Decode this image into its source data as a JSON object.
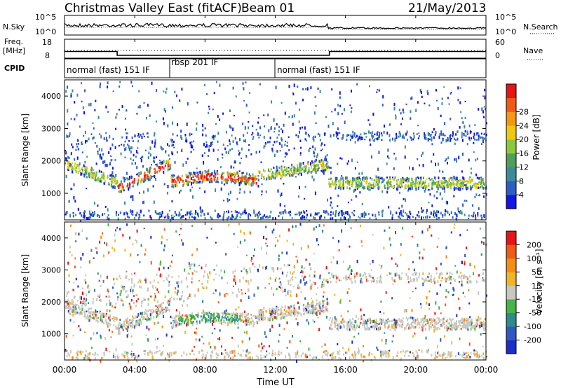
{
  "header": {
    "station": "Christmas Valley East (fitACF)",
    "beam": "Beam 01",
    "date": "21/May/2013"
  },
  "colors": {
    "power_scale": [
      "#1414e6",
      "#2a5fc8",
      "#3f8a9a",
      "#4da05a",
      "#8cc83c",
      "#f0c814",
      "#f59614",
      "#f05a14",
      "#e61414"
    ],
    "velocity_scale": [
      "#1a2fc8",
      "#3158c2",
      "#2f8a8a",
      "#46b446",
      "#c8c8c0",
      "#f0b428",
      "#f58c14",
      "#f05a14",
      "#e61414"
    ]
  },
  "chart_data": [
    {
      "type": "line",
      "panel": "noise",
      "series": [
        {
          "name": "N.Sky",
          "style": "solid"
        },
        {
          "name": "N.Search",
          "style": "dotted"
        }
      ],
      "left_label": "N.Sky",
      "right_label": "N.Search",
      "left_ticks": [
        "10^5",
        "10^0"
      ],
      "right_ticks": [
        "10^5",
        "10^0"
      ]
    },
    {
      "type": "line",
      "panel": "frequency",
      "left_label_1": "Freq.",
      "left_label_2": "[MHz]",
      "left_ticks": [
        "18",
        "8"
      ],
      "right_label": "Nave",
      "right_ticks": [
        "60",
        "0"
      ],
      "series": [
        {
          "name": "Freq.",
          "style": "solid",
          "x": [
            "00:00",
            "03:00",
            "03:00",
            "15:05",
            "15:05",
            "24:00"
          ],
          "y": [
            11.5,
            11.5,
            9.5,
            9.5,
            11.5,
            11.5
          ]
        },
        {
          "name": "Nave",
          "style": "dotted"
        }
      ]
    },
    {
      "type": "table",
      "panel": "cpid",
      "label": "CPID",
      "segments": [
        {
          "start": "00:00",
          "end": "06:00",
          "text": "normal (fast) 151 IF"
        },
        {
          "start": "06:00",
          "end": "12:00",
          "text": "rbsp 201 IF"
        },
        {
          "start": "12:00",
          "end": "24:00",
          "text": "normal (fast) 151 IF"
        }
      ]
    },
    {
      "type": "heatmap",
      "panel": "power",
      "ylabel": "Slant Range [km]",
      "ylim": [
        180,
        4500
      ],
      "yticks": [
        "1000",
        "2000",
        "3000",
        "4000"
      ],
      "colorbar_label": "Power [dB]",
      "colorbar_ticks": [
        "4",
        "8",
        "12",
        "16",
        "20",
        "24",
        "28"
      ],
      "colorbar_range": [
        0,
        30
      ]
    },
    {
      "type": "heatmap",
      "panel": "velocity",
      "ylabel": "Slant Range [km]",
      "ylim": [
        180,
        4500
      ],
      "yticks": [
        "1000",
        "2000",
        "3000",
        "4000"
      ],
      "colorbar_label": "Velocity [m s⁻¹]",
      "colorbar_ticks": [
        "200",
        "100",
        "50",
        "15",
        "-15",
        "-50",
        "-100",
        "-200"
      ]
    }
  ],
  "xaxis": {
    "label": "Time UT",
    "ticks": [
      "00:00",
      "04:00",
      "08:00",
      "12:00",
      "16:00",
      "20:00",
      "00:00"
    ]
  }
}
